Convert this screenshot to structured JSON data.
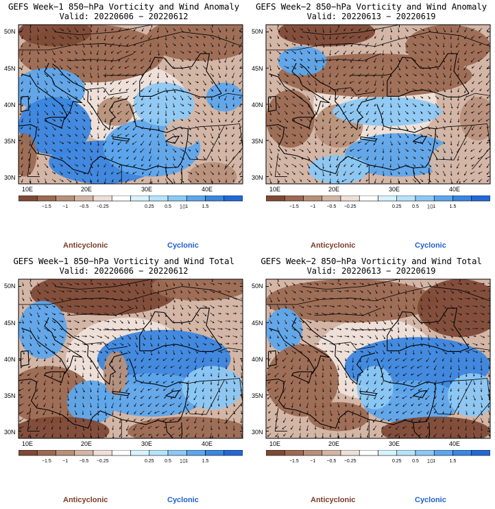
{
  "panels": [
    {
      "title": "GEFS Week−1 850−hPa Vorticity and Wind Anomaly",
      "valid": "Valid: 20220606 − 20220612"
    },
    {
      "title": "GEFS Week−2 850−hPa Vorticity and Wind Anomaly",
      "valid": "Valid: 20220613 − 20220619"
    },
    {
      "title": "GEFS Week−1 850−hPa Vorticity and Wind Total",
      "valid": "Valid: 20220606 − 20220612"
    },
    {
      "title": "GEFS Week−2 850−hPa Vorticity and Wind Total",
      "valid": "Valid: 20220613 − 20220619"
    }
  ],
  "lat_labels": [
    "50N",
    "45N",
    "40N",
    "35N",
    "30N"
  ],
  "lon_labels": [
    "10E",
    "20E",
    "30E",
    "40E"
  ],
  "colorbar": {
    "tick_labels": [
      "−1.5",
      "−1",
      "−0.5",
      "−0.25",
      "0.25",
      "0.5",
      "1",
      "1.5"
    ],
    "scale_note": "10",
    "colors": [
      "#7e4a36",
      "#9c6a52",
      "#b8907a",
      "#d4b6a6",
      "#eee0d8",
      "#ffffff",
      "#d8f3ff",
      "#b5e3fb",
      "#8cc8f4",
      "#5ea6ec",
      "#3a86e0",
      "#2468d6"
    ]
  },
  "legend": {
    "anticyclonic": "Anticyclonic",
    "cyclonic": "Cyclonic"
  },
  "colors": {
    "anticyclonic": "#7a3b26",
    "cyclonic": "#1f5fd0"
  }
}
